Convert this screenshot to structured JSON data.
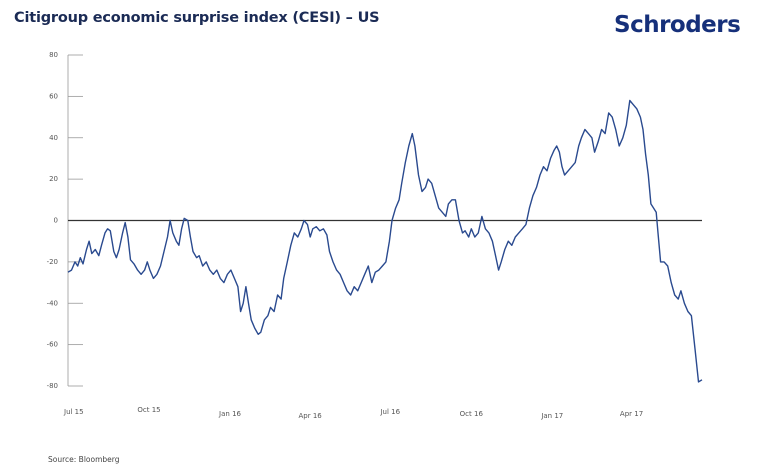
{
  "header": {
    "title": "Citigroup economic surprise index (CESI) – US",
    "logo": "Schroders"
  },
  "footer": {
    "source": "Source: Bloomberg"
  },
  "colors": {
    "line": "#2a4a8f",
    "title": "#1b2b55",
    "logo": "#16307a",
    "zero_line": "#333333",
    "axis": "#999999"
  },
  "chart_data": {
    "type": "line",
    "title": "Citigroup economic surprise index (CESI) – US",
    "xlabel": "",
    "ylabel": "",
    "ylim": [
      -80,
      80
    ],
    "yticks": [
      80,
      60,
      40,
      20,
      0,
      -20,
      -40,
      -60,
      -80
    ],
    "ytick_labels": [
      "80",
      "60",
      "40",
      "20",
      "0",
      "-20",
      "-40",
      "-60",
      "-80"
    ],
    "xlim": [
      "2015-07-01",
      "2017-06-20"
    ],
    "xticks": [
      "2015-07-01",
      "2015-10-01",
      "2016-01-01",
      "2016-04-01",
      "2016-07-01",
      "2016-10-01",
      "2017-01-01",
      "2017-04-01"
    ],
    "xtick_labels": [
      "Jul 15",
      "Oct 15",
      "Jan 16",
      "Apr 16",
      "Jul 16",
      "Oct 16",
      "Jan 17",
      "Apr 17"
    ],
    "grid": false,
    "reference_line": 0,
    "series": [
      {
        "name": "CESI US",
        "points": [
          [
            "2015-07-01",
            -25
          ],
          [
            "2015-07-05",
            -24
          ],
          [
            "2015-07-09",
            -20
          ],
          [
            "2015-07-12",
            -22
          ],
          [
            "2015-07-15",
            -18
          ],
          [
            "2015-07-18",
            -21
          ],
          [
            "2015-07-22",
            -14
          ],
          [
            "2015-07-25",
            -10
          ],
          [
            "2015-07-28",
            -16
          ],
          [
            "2015-08-01",
            -14
          ],
          [
            "2015-08-05",
            -17
          ],
          [
            "2015-08-08",
            -12
          ],
          [
            "2015-08-12",
            -6
          ],
          [
            "2015-08-15",
            -4
          ],
          [
            "2015-08-18",
            -5
          ],
          [
            "2015-08-22",
            -15
          ],
          [
            "2015-08-25",
            -18
          ],
          [
            "2015-08-28",
            -14
          ],
          [
            "2015-09-01",
            -6
          ],
          [
            "2015-09-04",
            -1
          ],
          [
            "2015-09-07",
            -8
          ],
          [
            "2015-09-10",
            -19
          ],
          [
            "2015-09-14",
            -21
          ],
          [
            "2015-09-18",
            -24
          ],
          [
            "2015-09-22",
            -26
          ],
          [
            "2015-09-26",
            -24
          ],
          [
            "2015-09-29",
            -20
          ],
          [
            "2015-10-02",
            -24
          ],
          [
            "2015-10-06",
            -28
          ],
          [
            "2015-10-10",
            -26
          ],
          [
            "2015-10-14",
            -22
          ],
          [
            "2015-10-18",
            -15
          ],
          [
            "2015-10-22",
            -8
          ],
          [
            "2015-10-25",
            0
          ],
          [
            "2015-10-28",
            -6
          ],
          [
            "2015-11-01",
            -10
          ],
          [
            "2015-11-04",
            -12
          ],
          [
            "2015-11-07",
            -4
          ],
          [
            "2015-11-10",
            1
          ],
          [
            "2015-11-14",
            0
          ],
          [
            "2015-11-17",
            -8
          ],
          [
            "2015-11-20",
            -15
          ],
          [
            "2015-11-24",
            -18
          ],
          [
            "2015-11-27",
            -17
          ],
          [
            "2015-12-01",
            -22
          ],
          [
            "2015-12-05",
            -20
          ],
          [
            "2015-12-09",
            -24
          ],
          [
            "2015-12-13",
            -26
          ],
          [
            "2015-12-17",
            -24
          ],
          [
            "2015-12-21",
            -28
          ],
          [
            "2015-12-25",
            -30
          ],
          [
            "2015-12-29",
            -26
          ],
          [
            "2016-01-02",
            -24
          ],
          [
            "2016-01-06",
            -28
          ],
          [
            "2016-01-10",
            -32
          ],
          [
            "2016-01-13",
            -44
          ],
          [
            "2016-01-16",
            -40
          ],
          [
            "2016-01-19",
            -32
          ],
          [
            "2016-01-22",
            -40
          ],
          [
            "2016-01-25",
            -48
          ],
          [
            "2016-01-29",
            -52
          ],
          [
            "2016-02-02",
            -55
          ],
          [
            "2016-02-05",
            -54
          ],
          [
            "2016-02-09",
            -48
          ],
          [
            "2016-02-13",
            -46
          ],
          [
            "2016-02-16",
            -42
          ],
          [
            "2016-02-20",
            -44
          ],
          [
            "2016-02-24",
            -36
          ],
          [
            "2016-02-28",
            -38
          ],
          [
            "2016-03-02",
            -28
          ],
          [
            "2016-03-06",
            -20
          ],
          [
            "2016-03-10",
            -12
          ],
          [
            "2016-03-14",
            -6
          ],
          [
            "2016-03-18",
            -8
          ],
          [
            "2016-03-22",
            -4
          ],
          [
            "2016-03-25",
            0
          ],
          [
            "2016-03-29",
            -2
          ],
          [
            "2016-04-01",
            -8
          ],
          [
            "2016-04-04",
            -4
          ],
          [
            "2016-04-08",
            -3
          ],
          [
            "2016-04-12",
            -5
          ],
          [
            "2016-04-16",
            -4
          ],
          [
            "2016-04-20",
            -7
          ],
          [
            "2016-04-23",
            -15
          ],
          [
            "2016-04-27",
            -20
          ],
          [
            "2016-05-01",
            -24
          ],
          [
            "2016-05-05",
            -26
          ],
          [
            "2016-05-09",
            -30
          ],
          [
            "2016-05-13",
            -34
          ],
          [
            "2016-05-17",
            -36
          ],
          [
            "2016-05-21",
            -32
          ],
          [
            "2016-05-25",
            -34
          ],
          [
            "2016-05-29",
            -30
          ],
          [
            "2016-06-02",
            -26
          ],
          [
            "2016-06-06",
            -22
          ],
          [
            "2016-06-10",
            -30
          ],
          [
            "2016-06-14",
            -25
          ],
          [
            "2016-06-18",
            -24
          ],
          [
            "2016-06-22",
            -22
          ],
          [
            "2016-06-26",
            -20
          ],
          [
            "2016-06-30",
            -10
          ],
          [
            "2016-07-03",
            0
          ],
          [
            "2016-07-07",
            6
          ],
          [
            "2016-07-11",
            10
          ],
          [
            "2016-07-14",
            18
          ],
          [
            "2016-07-18",
            28
          ],
          [
            "2016-07-22",
            36
          ],
          [
            "2016-07-26",
            42
          ],
          [
            "2016-07-29",
            36
          ],
          [
            "2016-08-02",
            22
          ],
          [
            "2016-08-06",
            14
          ],
          [
            "2016-08-10",
            16
          ],
          [
            "2016-08-13",
            20
          ],
          [
            "2016-08-17",
            18
          ],
          [
            "2016-08-21",
            12
          ],
          [
            "2016-08-25",
            6
          ],
          [
            "2016-08-29",
            4
          ],
          [
            "2016-09-02",
            2
          ],
          [
            "2016-09-05",
            8
          ],
          [
            "2016-09-09",
            10
          ],
          [
            "2016-09-13",
            10
          ],
          [
            "2016-09-17",
            0
          ],
          [
            "2016-09-21",
            -6
          ],
          [
            "2016-09-24",
            -5
          ],
          [
            "2016-09-28",
            -8
          ],
          [
            "2016-10-01",
            -4
          ],
          [
            "2016-10-05",
            -8
          ],
          [
            "2016-10-09",
            -6
          ],
          [
            "2016-10-13",
            2
          ],
          [
            "2016-10-17",
            -4
          ],
          [
            "2016-10-21",
            -6
          ],
          [
            "2016-10-25",
            -10
          ],
          [
            "2016-10-28",
            -16
          ],
          [
            "2016-11-01",
            -24
          ],
          [
            "2016-11-04",
            -20
          ],
          [
            "2016-11-08",
            -14
          ],
          [
            "2016-11-12",
            -10
          ],
          [
            "2016-11-16",
            -12
          ],
          [
            "2016-11-20",
            -8
          ],
          [
            "2016-11-24",
            -6
          ],
          [
            "2016-11-28",
            -4
          ],
          [
            "2016-12-02",
            -2
          ],
          [
            "2016-12-06",
            6
          ],
          [
            "2016-12-10",
            12
          ],
          [
            "2016-12-14",
            16
          ],
          [
            "2016-12-18",
            22
          ],
          [
            "2016-12-22",
            26
          ],
          [
            "2016-12-26",
            24
          ],
          [
            "2016-12-30",
            30
          ],
          [
            "2017-01-03",
            34
          ],
          [
            "2017-01-06",
            36
          ],
          [
            "2017-01-09",
            33
          ],
          [
            "2017-01-12",
            26
          ],
          [
            "2017-01-15",
            22
          ],
          [
            "2017-01-19",
            24
          ],
          [
            "2017-01-23",
            26
          ],
          [
            "2017-01-27",
            28
          ],
          [
            "2017-01-31",
            36
          ],
          [
            "2017-02-03",
            40
          ],
          [
            "2017-02-07",
            44
          ],
          [
            "2017-02-11",
            42
          ],
          [
            "2017-02-15",
            40
          ],
          [
            "2017-02-18",
            33
          ],
          [
            "2017-02-22",
            38
          ],
          [
            "2017-02-26",
            44
          ],
          [
            "2017-03-02",
            42
          ],
          [
            "2017-03-06",
            52
          ],
          [
            "2017-03-10",
            50
          ],
          [
            "2017-03-14",
            44
          ],
          [
            "2017-03-18",
            36
          ],
          [
            "2017-03-22",
            40
          ],
          [
            "2017-03-26",
            46
          ],
          [
            "2017-03-30",
            58
          ],
          [
            "2017-04-03",
            56
          ],
          [
            "2017-04-07",
            54
          ],
          [
            "2017-04-11",
            50
          ],
          [
            "2017-04-14",
            44
          ],
          [
            "2017-04-17",
            32
          ],
          [
            "2017-04-20",
            22
          ],
          [
            "2017-04-23",
            8
          ],
          [
            "2017-04-26",
            6
          ],
          [
            "2017-04-29",
            4
          ],
          [
            "2017-05-01",
            -6
          ],
          [
            "2017-05-04",
            -20
          ],
          [
            "2017-05-08",
            -20
          ],
          [
            "2017-05-12",
            -22
          ],
          [
            "2017-05-16",
            -30
          ],
          [
            "2017-05-20",
            -36
          ],
          [
            "2017-05-24",
            -38
          ],
          [
            "2017-05-27",
            -34
          ],
          [
            "2017-05-31",
            -40
          ],
          [
            "2017-06-04",
            -44
          ],
          [
            "2017-06-08",
            -46
          ],
          [
            "2017-06-12",
            -62
          ],
          [
            "2017-06-16",
            -78
          ],
          [
            "2017-06-20",
            -77
          ]
        ]
      }
    ],
    "source": "Source: Bloomberg"
  }
}
